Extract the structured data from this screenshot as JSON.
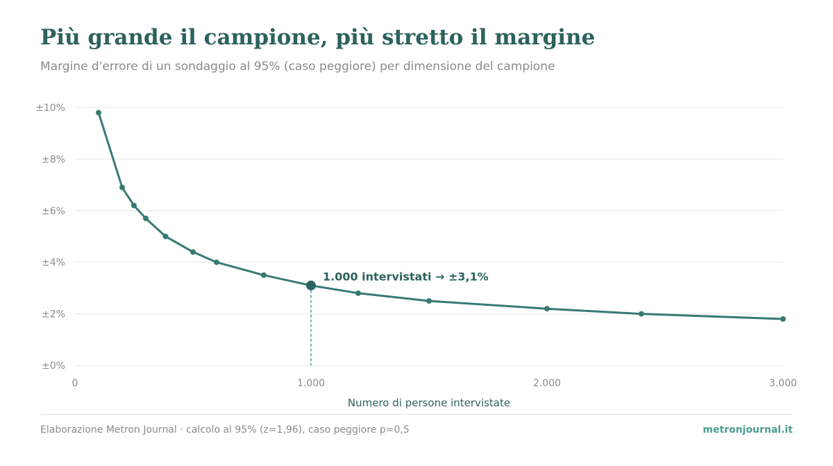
{
  "header": {
    "title": "Più grande il campione, più stretto il margine",
    "subtitle": "Margine d'errore di un sondaggio al 95% (caso peggiore) per dimensione del campione"
  },
  "footer": {
    "source": "Elaborazione Metron Journal · calcolo al 95% (z=1,96), caso peggiore p=0,5",
    "site": "metronjournal.it"
  },
  "colors": {
    "line": "#367a73",
    "highlight": "#2d625e",
    "grid": "#e6e6e6",
    "dashed": "#4a9b92"
  },
  "chart_data": {
    "type": "line",
    "xlabel": "Numero di persone intervistate",
    "ylabel": "",
    "xlim": [
      0,
      3000
    ],
    "ylim": [
      0,
      10
    ],
    "x_ticks": [
      0,
      1000,
      2000,
      3000
    ],
    "x_tick_labels": [
      "0",
      "1.000",
      "2.000",
      "3.000"
    ],
    "y_ticks": [
      0,
      2,
      4,
      6,
      8,
      10
    ],
    "y_tick_labels": [
      "±0%",
      "±2%",
      "±4%",
      "±6%",
      "±8%",
      "±10%"
    ],
    "grid": true,
    "series": [
      {
        "x": [
          100,
          200,
          250,
          300,
          384,
          500,
          600,
          800,
          1000,
          1200,
          1500,
          2000,
          2400,
          3000
        ],
        "values": [
          9.8,
          6.9,
          6.2,
          5.7,
          5.0,
          4.4,
          4.0,
          3.5,
          3.1,
          2.8,
          2.5,
          2.2,
          2.0,
          1.8
        ]
      }
    ],
    "annotation": {
      "x": 1000,
      "y": 3.1,
      "text": "1.000 intervistati → ±3,1%"
    }
  }
}
